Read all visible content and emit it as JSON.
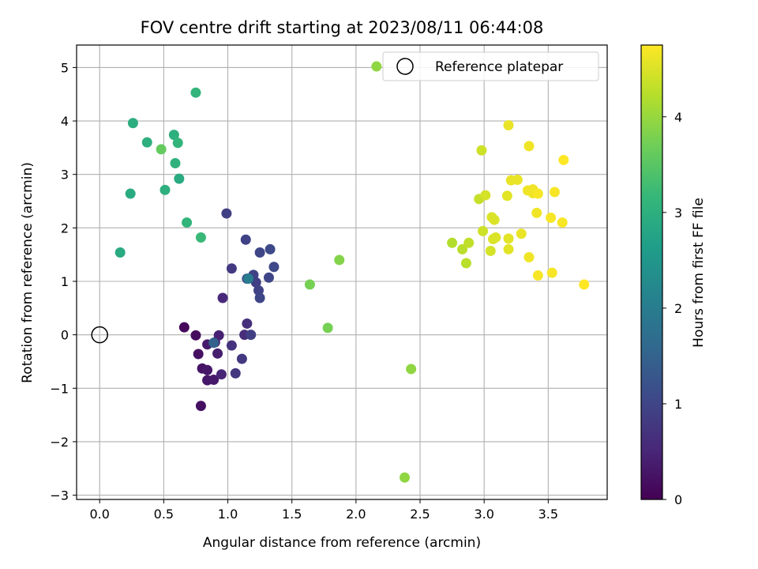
{
  "chart_data": {
    "type": "scatter",
    "title": "FOV centre drift starting at 2023/08/11 06:44:08",
    "xlabel": "Angular distance from reference (arcmin)",
    "ylabel": "Rotation from reference (arcmin)",
    "xlim": [
      -0.18,
      3.96
    ],
    "ylim": [
      -3.08,
      5.42
    ],
    "xticks": [
      0.0,
      0.5,
      1.0,
      1.5,
      2.0,
      2.5,
      3.0,
      3.5
    ],
    "xtick_labels": [
      "0.0",
      "0.5",
      "1.0",
      "1.5",
      "2.0",
      "2.5",
      "3.0",
      "3.5"
    ],
    "yticks": [
      -3,
      -2,
      -1,
      0,
      1,
      2,
      3,
      4,
      5
    ],
    "ytick_labels": [
      "−3",
      "−2",
      "−1",
      "0",
      "1",
      "2",
      "3",
      "4",
      "5"
    ],
    "grid": true,
    "legend": {
      "placement": "top-right",
      "entries": [
        "Reference platepar"
      ]
    },
    "reference_point": {
      "x": 0.0,
      "y": 0.0,
      "label": "Reference platepar"
    },
    "colorbar": {
      "label": "Hours from first FF file",
      "colormap": "viridis",
      "range": [
        0,
        4.75
      ],
      "ticks": [
        0,
        1,
        2,
        3,
        4
      ],
      "tick_labels": [
        "0",
        "1",
        "2",
        "3",
        "4"
      ]
    },
    "color_stops": [
      "#440154",
      "#482878",
      "#3e4989",
      "#31688e",
      "#26828e",
      "#1f9e89",
      "#35b779",
      "#6ece58",
      "#b5de2b",
      "#fde725"
    ],
    "points": [
      {
        "x": 0.66,
        "y": 0.14,
        "hours": 0.1
      },
      {
        "x": 0.75,
        "y": -0.01,
        "hours": 0.15
      },
      {
        "x": 0.77,
        "y": -0.36,
        "hours": 0.2
      },
      {
        "x": 0.8,
        "y": -0.63,
        "hours": 0.25
      },
      {
        "x": 0.84,
        "y": -0.66,
        "hours": 0.3
      },
      {
        "x": 0.79,
        "y": -1.33,
        "hours": 0.2
      },
      {
        "x": 0.84,
        "y": -0.85,
        "hours": 0.3
      },
      {
        "x": 0.89,
        "y": -0.84,
        "hours": 0.35
      },
      {
        "x": 0.84,
        "y": -0.18,
        "hours": 0.35
      },
      {
        "x": 0.9,
        "y": -0.14,
        "hours": 0.4
      },
      {
        "x": 0.92,
        "y": -0.35,
        "hours": 0.4
      },
      {
        "x": 0.93,
        "y": -0.01,
        "hours": 0.45
      },
      {
        "x": 0.95,
        "y": -0.74,
        "hours": 0.5
      },
      {
        "x": 0.96,
        "y": 0.69,
        "hours": 0.55
      },
      {
        "x": 1.03,
        "y": -0.2,
        "hours": 0.7
      },
      {
        "x": 1.03,
        "y": 1.24,
        "hours": 0.8
      },
      {
        "x": 1.06,
        "y": -0.72,
        "hours": 0.75
      },
      {
        "x": 1.11,
        "y": -0.45,
        "hours": 0.8
      },
      {
        "x": 1.13,
        "y": 0.0,
        "hours": 0.6
      },
      {
        "x": 1.15,
        "y": 0.21,
        "hours": 0.65
      },
      {
        "x": 1.18,
        "y": 0.0,
        "hours": 0.9
      },
      {
        "x": 0.99,
        "y": 2.27,
        "hours": 0.9
      },
      {
        "x": 1.14,
        "y": 1.78,
        "hours": 0.95
      },
      {
        "x": 1.15,
        "y": 1.05,
        "hours": 1.0
      },
      {
        "x": 1.2,
        "y": 1.12,
        "hours": 0.95
      },
      {
        "x": 1.22,
        "y": 0.98,
        "hours": 0.9
      },
      {
        "x": 1.24,
        "y": 0.83,
        "hours": 0.95
      },
      {
        "x": 1.25,
        "y": 0.69,
        "hours": 1.0
      },
      {
        "x": 1.25,
        "y": 1.54,
        "hours": 1.0
      },
      {
        "x": 1.32,
        "y": 1.07,
        "hours": 1.0
      },
      {
        "x": 1.33,
        "y": 1.6,
        "hours": 1.05
      },
      {
        "x": 1.36,
        "y": 1.27,
        "hours": 1.05
      },
      {
        "x": 0.89,
        "y": -0.15,
        "hours": 1.5
      },
      {
        "x": 1.16,
        "y": 1.05,
        "hours": 2.0
      },
      {
        "x": 0.16,
        "y": 1.54,
        "hours": 2.9
      },
      {
        "x": 0.24,
        "y": 2.64,
        "hours": 2.9
      },
      {
        "x": 0.26,
        "y": 3.96,
        "hours": 2.95
      },
      {
        "x": 0.37,
        "y": 3.6,
        "hours": 3.0
      },
      {
        "x": 0.51,
        "y": 2.71,
        "hours": 3.0
      },
      {
        "x": 0.58,
        "y": 3.74,
        "hours": 3.0
      },
      {
        "x": 0.59,
        "y": 3.21,
        "hours": 3.05
      },
      {
        "x": 0.61,
        "y": 3.59,
        "hours": 3.1
      },
      {
        "x": 0.62,
        "y": 2.92,
        "hours": 2.9
      },
      {
        "x": 0.68,
        "y": 2.1,
        "hours": 3.1
      },
      {
        "x": 0.75,
        "y": 4.53,
        "hours": 3.1
      },
      {
        "x": 0.79,
        "y": 1.82,
        "hours": 3.2
      },
      {
        "x": 0.48,
        "y": 3.47,
        "hours": 3.6
      },
      {
        "x": 1.64,
        "y": 0.94,
        "hours": 3.75
      },
      {
        "x": 1.78,
        "y": 0.13,
        "hours": 3.75
      },
      {
        "x": 1.87,
        "y": 1.4,
        "hours": 3.85
      },
      {
        "x": 2.16,
        "y": 5.02,
        "hours": 3.95
      },
      {
        "x": 2.38,
        "y": -2.67,
        "hours": 3.95
      },
      {
        "x": 2.43,
        "y": -0.64,
        "hours": 3.95
      },
      {
        "x": 2.75,
        "y": 1.72,
        "hours": 4.2
      },
      {
        "x": 2.83,
        "y": 1.6,
        "hours": 4.25
      },
      {
        "x": 2.86,
        "y": 1.34,
        "hours": 4.25
      },
      {
        "x": 2.88,
        "y": 1.72,
        "hours": 4.3
      },
      {
        "x": 2.96,
        "y": 2.54,
        "hours": 4.35
      },
      {
        "x": 2.98,
        "y": 3.45,
        "hours": 4.4
      },
      {
        "x": 2.99,
        "y": 1.94,
        "hours": 4.4
      },
      {
        "x": 3.01,
        "y": 2.61,
        "hours": 4.45
      },
      {
        "x": 3.05,
        "y": 1.57,
        "hours": 4.45
      },
      {
        "x": 3.06,
        "y": 2.2,
        "hours": 4.5
      },
      {
        "x": 3.07,
        "y": 1.79,
        "hours": 4.5
      },
      {
        "x": 3.08,
        "y": 2.15,
        "hours": 4.5
      },
      {
        "x": 3.09,
        "y": 1.82,
        "hours": 4.5
      },
      {
        "x": 3.18,
        "y": 2.6,
        "hours": 4.55
      },
      {
        "x": 3.19,
        "y": 1.8,
        "hours": 4.55
      },
      {
        "x": 3.19,
        "y": 1.6,
        "hours": 4.55
      },
      {
        "x": 3.19,
        "y": 3.92,
        "hours": 4.6
      },
      {
        "x": 3.21,
        "y": 2.89,
        "hours": 4.6
      },
      {
        "x": 3.26,
        "y": 2.9,
        "hours": 4.6
      },
      {
        "x": 3.29,
        "y": 1.89,
        "hours": 4.6
      },
      {
        "x": 3.34,
        "y": 2.7,
        "hours": 4.65
      },
      {
        "x": 3.35,
        "y": 1.45,
        "hours": 4.65
      },
      {
        "x": 3.35,
        "y": 3.53,
        "hours": 4.65
      },
      {
        "x": 3.38,
        "y": 2.72,
        "hours": 4.65
      },
      {
        "x": 3.38,
        "y": 2.65,
        "hours": 4.65
      },
      {
        "x": 3.41,
        "y": 2.28,
        "hours": 4.65
      },
      {
        "x": 3.42,
        "y": 2.64,
        "hours": 4.7
      },
      {
        "x": 3.42,
        "y": 1.11,
        "hours": 4.7
      },
      {
        "x": 3.52,
        "y": 2.19,
        "hours": 4.7
      },
      {
        "x": 3.53,
        "y": 1.16,
        "hours": 4.7
      },
      {
        "x": 3.55,
        "y": 2.67,
        "hours": 4.7
      },
      {
        "x": 3.61,
        "y": 2.1,
        "hours": 4.7
      },
      {
        "x": 3.62,
        "y": 3.27,
        "hours": 4.75
      },
      {
        "x": 3.78,
        "y": 0.94,
        "hours": 4.75
      }
    ]
  }
}
